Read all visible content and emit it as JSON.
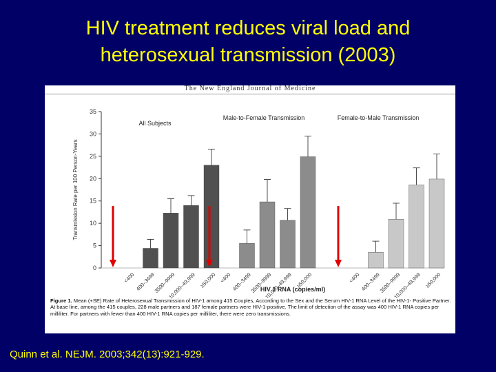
{
  "slide": {
    "title_line1": "HIV treatment reduces viral load and",
    "title_line2": "heterosexual transmission (2003)",
    "citation": "Quinn et al. NEJM. 2003;342(13):921-929."
  },
  "figure": {
    "journal_header": "The New England Journal of Medicine",
    "caption_label": "Figure 1.",
    "caption_text": "Mean (+SE) Rate of Heterosexual Transmission of HIV-1 among 415 Couples, According to the Sex and the Serum HIV-1 RNA Level of the HIV-1- Positive Partner.",
    "caption_note": "At base line, among the 415 couples, 228 male partners and 187 female partners were HIV-1-positive. The limit of detection of the assay was 400 HIV-1 RNA copies per milliliter. For partners with fewer than 400 HIV-1 RNA copies per milliliter, there were zero transmissions."
  },
  "colors": {
    "background": "#000066",
    "title": "#ffff00",
    "arrow": "#e00000",
    "group_all": "#505050",
    "group_mf": "#8c8c8c",
    "group_fm": "#c8c8c8"
  },
  "chart_data": {
    "type": "bar",
    "ylabel": "Transmission Rate per 100 Person-Years",
    "xlabel": "HIV 1 RNA (copies/ml)",
    "ylim": [
      0,
      35
    ],
    "yticks": [
      0,
      5,
      10,
      15,
      20,
      25,
      30,
      35
    ],
    "categories": [
      "<400",
      "400–3499",
      "3500–9999",
      "10,000–49,999",
      "≥50,000"
    ],
    "series": [
      {
        "name": "All Subjects",
        "values": [
          0,
          4.4,
          12.3,
          14.0,
          23.0
        ],
        "errors": [
          0,
          2.0,
          3.2,
          2.2,
          3.6
        ]
      },
      {
        "name": "Male-to-Female Transmission",
        "values": [
          0,
          5.5,
          14.8,
          10.7,
          24.9
        ],
        "errors": [
          0,
          3.0,
          5.0,
          2.6,
          4.6
        ]
      },
      {
        "name": "Female-to-Male Transmission",
        "values": [
          0,
          3.5,
          10.9,
          18.6,
          19.9
        ],
        "errors": [
          0,
          2.5,
          3.6,
          3.8,
          5.6
        ]
      }
    ],
    "annotations": [
      "red arrows mark the <400 category (zero transmissions) in each group"
    ]
  }
}
